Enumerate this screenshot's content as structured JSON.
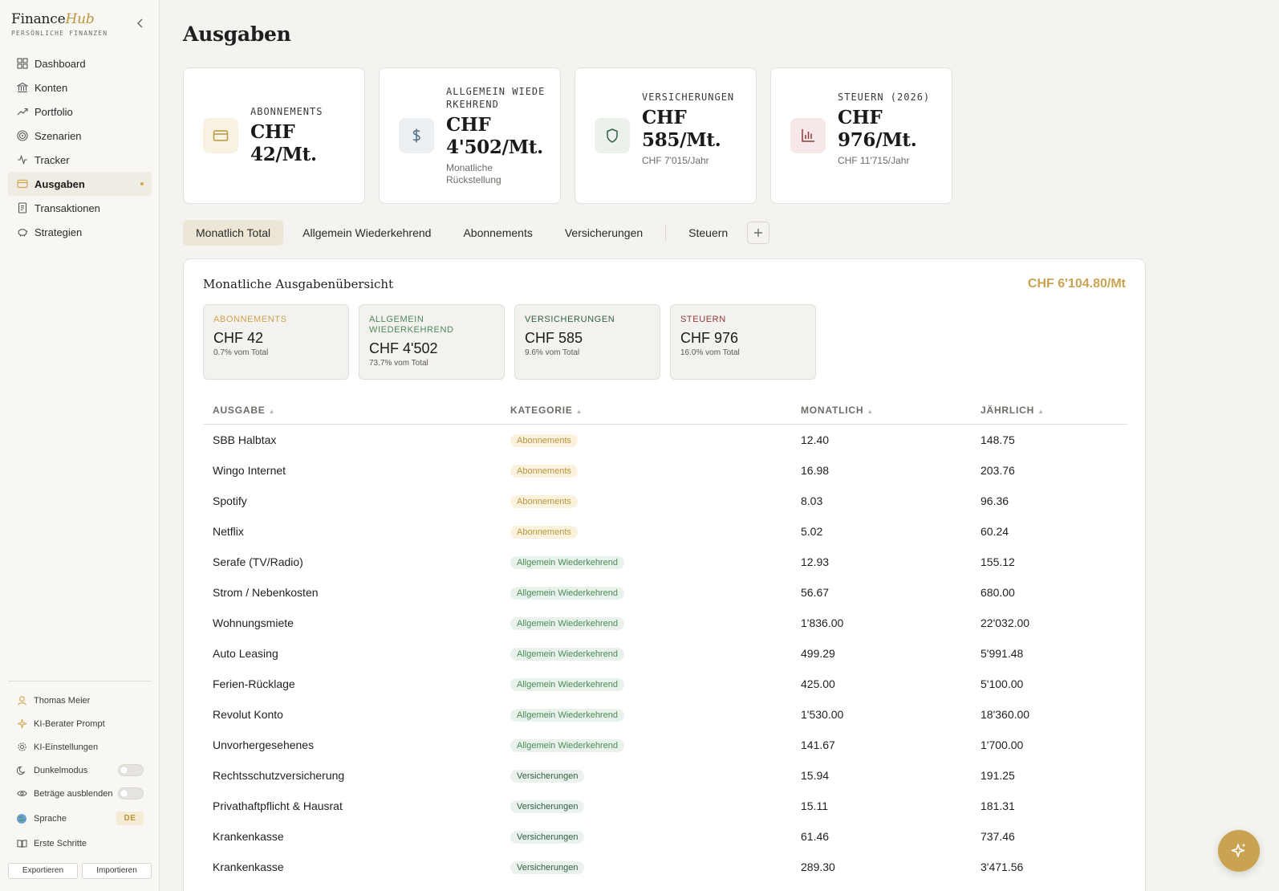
{
  "brand": {
    "name_prefix": "Finance",
    "name_suffix": "Hub",
    "subtitle": "PERSÖNLICHE FINANZEN"
  },
  "nav": [
    {
      "label": "Dashboard",
      "icon": "dashboard-icon"
    },
    {
      "label": "Konten",
      "icon": "bank-icon"
    },
    {
      "label": "Portfolio",
      "icon": "trend-up-icon"
    },
    {
      "label": "Szenarien",
      "icon": "target-icon"
    },
    {
      "label": "Tracker",
      "icon": "pulse-icon"
    },
    {
      "label": "Ausgaben",
      "icon": "card-icon",
      "active": true
    },
    {
      "label": "Transaktionen",
      "icon": "receipt-icon"
    },
    {
      "label": "Strategien",
      "icon": "piggy-icon"
    }
  ],
  "sidebar_bottom": {
    "user": "Thomas Meier",
    "ki_prompt": "KI-Berater Prompt",
    "ki_settings": "KI-Einstellungen",
    "dark_mode": "Dunkelmodus",
    "hide_amounts": "Beträge ausblenden",
    "language": "Sprache",
    "language_value": "DE",
    "getting_started": "Erste Schritte",
    "export": "Exportieren",
    "import": "Importieren"
  },
  "page": {
    "title": "Ausgaben"
  },
  "kpis": [
    {
      "label": "ABONNEMENTS",
      "value": "CHF 42/Mt.",
      "sub": "",
      "icon": "card-icon",
      "color": "#b8963e",
      "bg": "#f8f2e3"
    },
    {
      "label": "ALLGEMEIN WIEDERKEHREND",
      "value": "CHF 4'502/Mt.",
      "sub": "Monatliche Rückstellung",
      "icon": "dollar-icon",
      "color": "#4e6b84",
      "bg": "#edf0f3"
    },
    {
      "label": "VERSICHERUNGEN",
      "value": "CHF 585/Mt.",
      "sub": "CHF 7'015/Jahr",
      "icon": "shield-icon",
      "color": "#2f6140",
      "bg": "#ecf1ec"
    },
    {
      "label": "STEUERN (2026)",
      "value": "CHF 976/Mt.",
      "sub": "CHF 11'715/Jahr",
      "icon": "bar-chart-icon",
      "color": "#8c3b3b",
      "bg": "#f6e8e8"
    }
  ],
  "tabs": [
    "Monatlich Total",
    "Allgemein Wiederkehrend",
    "Abonnements",
    "Versicherungen",
    "Steuern"
  ],
  "overview": {
    "title": "Monatliche Ausgabenübersicht",
    "total": "CHF 6'104.80/Mt",
    "cards": [
      {
        "label": "ABONNEMENTS",
        "value": "CHF 42",
        "pct": "0.7% vom Total",
        "color": "#c9a351"
      },
      {
        "label": "ALLGEMEIN WIEDERKEHREND",
        "value": "CHF 4'502",
        "pct": "73.7% vom Total",
        "color": "#4a8a5a"
      },
      {
        "label": "VERSICHERUNGEN",
        "value": "CHF 585",
        "pct": "9.6% vom Total",
        "color": "#2f6140"
      },
      {
        "label": "STEUERN",
        "value": "CHF 976",
        "pct": "16.0% vom Total",
        "color": "#8c3b3b"
      }
    ]
  },
  "table": {
    "headers": [
      "AUSGABE",
      "KATEGORIE",
      "MONATLICH",
      "JÄHRLICH"
    ],
    "rows": [
      {
        "name": "SBB Halbtax",
        "category": "Abonnements",
        "cat": "abo",
        "monthly": "12.40",
        "yearly": "148.75"
      },
      {
        "name": "Wingo Internet",
        "category": "Abonnements",
        "cat": "abo",
        "monthly": "16.98",
        "yearly": "203.76"
      },
      {
        "name": "Spotify",
        "category": "Abonnements",
        "cat": "abo",
        "monthly": "8.03",
        "yearly": "96.36"
      },
      {
        "name": "Netflix",
        "category": "Abonnements",
        "cat": "abo",
        "monthly": "5.02",
        "yearly": "60.24"
      },
      {
        "name": "Serafe (TV/Radio)",
        "category": "Allgemein Wiederkehrend",
        "cat": "allg",
        "monthly": "12.93",
        "yearly": "155.12"
      },
      {
        "name": "Strom / Nebenkosten",
        "category": "Allgemein Wiederkehrend",
        "cat": "allg",
        "monthly": "56.67",
        "yearly": "680.00"
      },
      {
        "name": "Wohnungsmiete",
        "category": "Allgemein Wiederkehrend",
        "cat": "allg",
        "monthly": "1'836.00",
        "yearly": "22'032.00"
      },
      {
        "name": "Auto Leasing",
        "category": "Allgemein Wiederkehrend",
        "cat": "allg",
        "monthly": "499.29",
        "yearly": "5'991.48"
      },
      {
        "name": "Ferien-Rücklage",
        "category": "Allgemein Wiederkehrend",
        "cat": "allg",
        "monthly": "425.00",
        "yearly": "5'100.00"
      },
      {
        "name": "Revolut Konto",
        "category": "Allgemein Wiederkehrend",
        "cat": "allg",
        "monthly": "1'530.00",
        "yearly": "18'360.00"
      },
      {
        "name": "Unvorhergesehenes",
        "category": "Allgemein Wiederkehrend",
        "cat": "allg",
        "monthly": "141.67",
        "yearly": "1'700.00"
      },
      {
        "name": "Rechtsschutzversicherung",
        "category": "Versicherungen",
        "cat": "vers",
        "monthly": "15.94",
        "yearly": "191.25"
      },
      {
        "name": "Privathaftpflicht & Hausrat",
        "category": "Versicherungen",
        "cat": "vers",
        "monthly": "15.11",
        "yearly": "181.31"
      },
      {
        "name": "Krankenkasse",
        "category": "Versicherungen",
        "cat": "vers",
        "monthly": "61.46",
        "yearly": "737.46"
      },
      {
        "name": "Krankenkasse",
        "category": "Versicherungen",
        "cat": "vers",
        "monthly": "289.30",
        "yearly": "3'471.56"
      }
    ]
  }
}
